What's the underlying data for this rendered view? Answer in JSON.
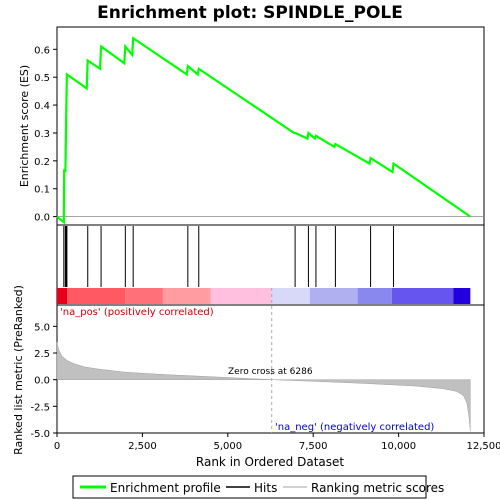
{
  "chart_data": {
    "type": "line",
    "title": "Enrichment plot: SPINDLE_POLE",
    "top_panel": {
      "ylabel": "Enrichment score (ES)",
      "ylim": [
        -0.03,
        0.68
      ],
      "yticks": [
        "0.0",
        "0.1",
        "0.2",
        "0.3",
        "0.4",
        "0.5",
        "0.6"
      ],
      "series": [
        {
          "name": "Enrichment profile",
          "color": "#00ff00",
          "x": [
            0,
            200,
            210,
            245,
            265,
            290,
            870,
            900,
            1260,
            1290,
            1970,
            2000,
            2200,
            2230,
            3800,
            3830,
            4120,
            4150,
            6940,
            6970,
            7330,
            7360,
            7550,
            7580,
            8120,
            8150,
            9150,
            9180,
            9820,
            9850,
            12100
          ],
          "y": [
            0.0,
            -0.02,
            0.17,
            0.16,
            0.34,
            0.51,
            0.46,
            0.56,
            0.53,
            0.61,
            0.55,
            0.61,
            0.58,
            0.64,
            0.51,
            0.54,
            0.51,
            0.53,
            0.3,
            0.3,
            0.28,
            0.3,
            0.28,
            0.29,
            0.25,
            0.26,
            0.19,
            0.21,
            0.16,
            0.19,
            0.0
          ]
        }
      ]
    },
    "hits_panel": {
      "hit_positions": [
        200,
        245,
        265,
        290,
        900,
        1290,
        2000,
        2230,
        3830,
        4150,
        6970,
        7360,
        7580,
        8150,
        9180,
        9850
      ]
    },
    "bottom_panel": {
      "ylabel": "Ranked list metric (PreRanked)",
      "xlabel": "Rank in Ordered Dataset",
      "ylim": [
        -5,
        7
      ],
      "yticks": [
        "-5.0",
        "-2.5",
        "0.0",
        "2.5",
        "5.0"
      ],
      "xlim": [
        0,
        12500
      ],
      "xticks": [
        "0",
        "2,500",
        "5,000",
        "7,500",
        "10,000",
        "12,500"
      ],
      "metric_curve": {
        "x": [
          0,
          50,
          150,
          300,
          500,
          800,
          1200,
          2000,
          3000,
          4000,
          5000,
          6286,
          7500,
          9000,
          10500,
          11300,
          11700,
          11900,
          12000,
          12060,
          12100
        ],
        "y": [
          3.5,
          2.8,
          2.2,
          1.8,
          1.5,
          1.2,
          1.0,
          0.7,
          0.5,
          0.35,
          0.2,
          0.0,
          -0.15,
          -0.35,
          -0.6,
          -0.85,
          -1.1,
          -1.5,
          -2.2,
          -3.5,
          -4.8
        ]
      },
      "zero_cross_label": "Zero cross at 6286",
      "zero_cross": 6286,
      "pos_label": "'na_pos' (positively correlated)",
      "neg_label": "'na_neg' (negatively correlated)",
      "pos_color": "#cc0000",
      "neg_color": "#0000cc"
    },
    "heatmap_bar": {
      "segments": [
        {
          "start": 0,
          "end": 300,
          "color": "#e8001a"
        },
        {
          "start": 300,
          "end": 2000,
          "color": "#ff5a64"
        },
        {
          "start": 2000,
          "end": 3100,
          "color": "#ff7078"
        },
        {
          "start": 3100,
          "end": 4500,
          "color": "#ff9ca2"
        },
        {
          "start": 4500,
          "end": 6286,
          "color": "#ffc0e0"
        },
        {
          "start": 6286,
          "end": 7400,
          "color": "#d8d8f8"
        },
        {
          "start": 7400,
          "end": 8800,
          "color": "#b0b0f0"
        },
        {
          "start": 8800,
          "end": 9800,
          "color": "#8888ee"
        },
        {
          "start": 9800,
          "end": 11600,
          "color": "#6655ee"
        },
        {
          "start": 11600,
          "end": 12100,
          "color": "#2200dd"
        }
      ]
    },
    "legend": {
      "items": [
        {
          "label": "Enrichment profile",
          "color": "#00ff00"
        },
        {
          "label": "Hits",
          "color": "#000000"
        },
        {
          "label": "Ranking metric scores",
          "color": "#c0c0c0"
        }
      ]
    }
  }
}
